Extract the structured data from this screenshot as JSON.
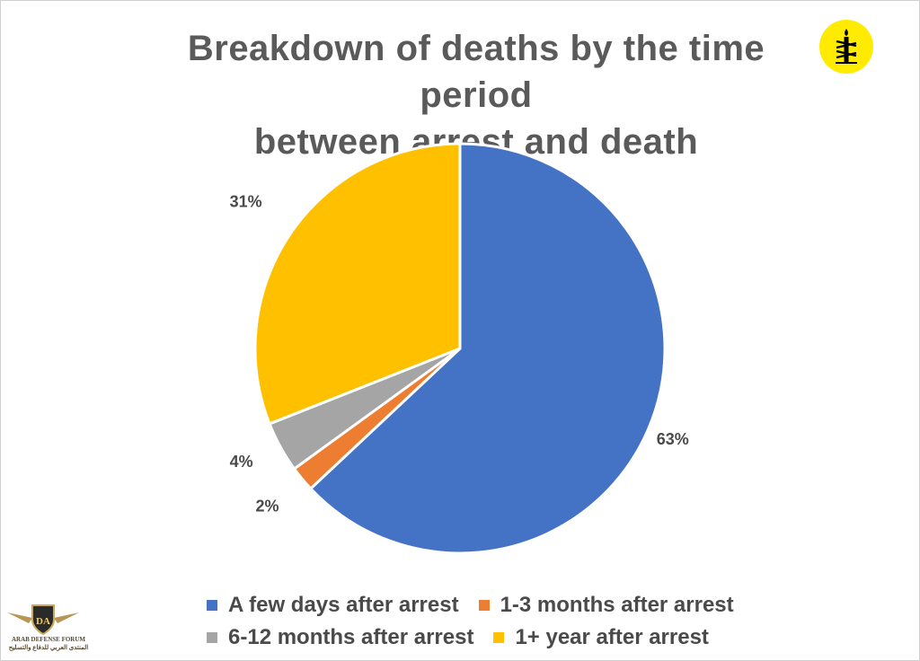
{
  "title_line1": "Breakdown of deaths by the time period",
  "title_line2": "between arrest and death",
  "logo": {
    "icon": "candle-barbed-wire-icon",
    "background": "#ffeb00"
  },
  "watermark": {
    "text_en": "ARAB DEFENSE FORUM",
    "text_ar": "المنتدى العربي للدفاع والتسليح",
    "monogram": "DA"
  },
  "chart_data": {
    "type": "pie",
    "title": "Breakdown of deaths by the time period between arrest and death",
    "categories": [
      "A few days after arrest",
      "1-3 months after arrest",
      "6-12 months after arrest",
      "1+ year after arrest"
    ],
    "values": [
      63,
      2,
      4,
      31
    ],
    "labels": [
      "63%",
      "2%",
      "4%",
      "31%"
    ],
    "colors": [
      "#4472c4",
      "#ed7d31",
      "#a5a5a5",
      "#ffc000"
    ],
    "start": "12 o'clock",
    "direction": "clockwise",
    "legend": "bottom"
  }
}
